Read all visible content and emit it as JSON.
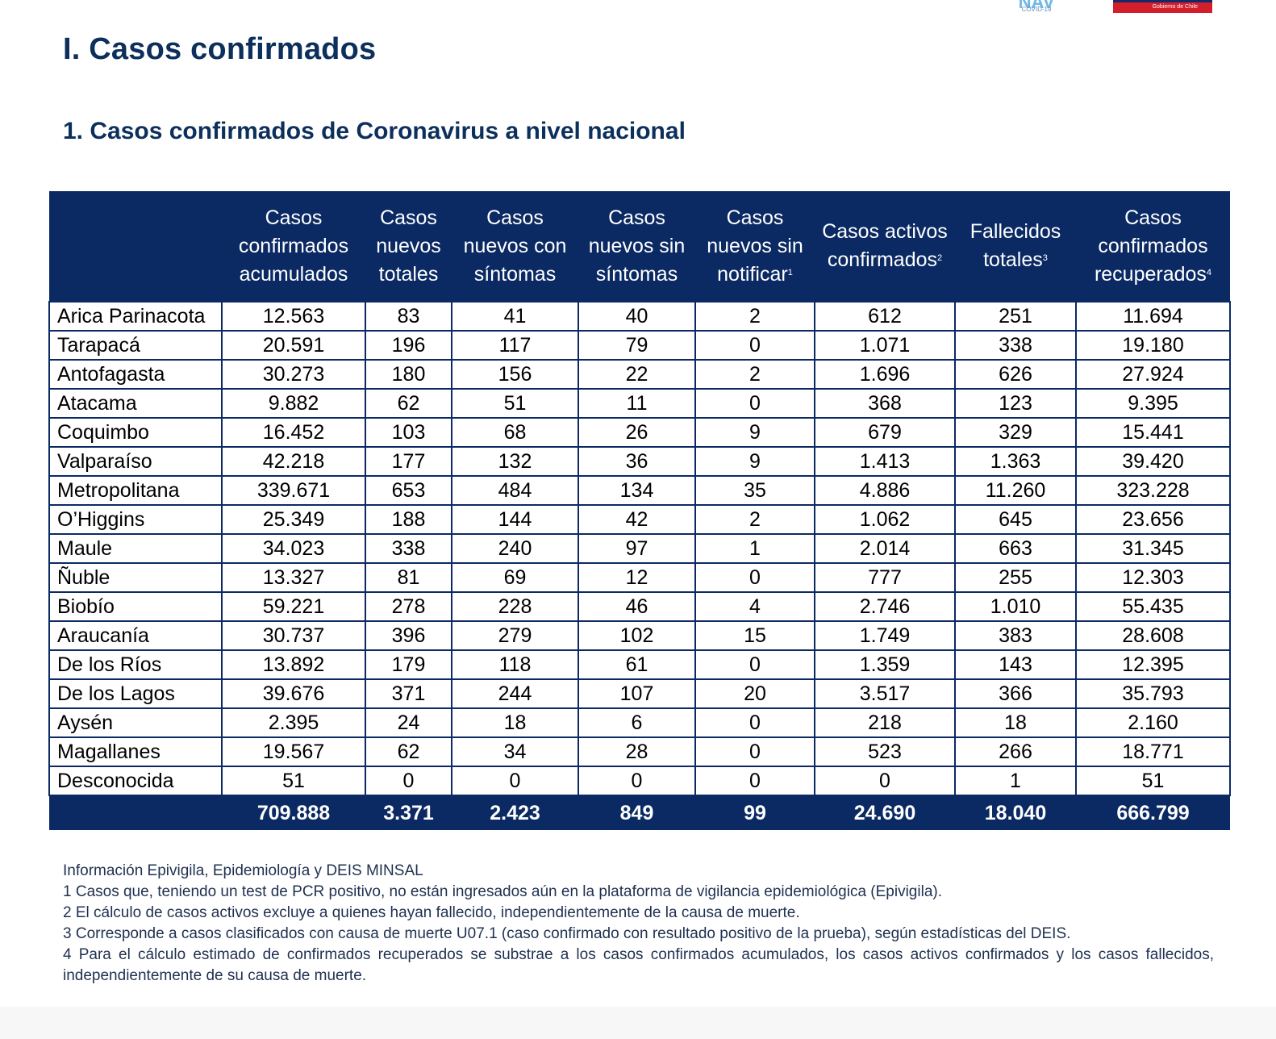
{
  "logos": {
    "left_label": "NAV",
    "left_sub": "COVID-19",
    "right_label": "Gobierno de Chile"
  },
  "heading": "I. Casos confirmados",
  "subheading": "1. Casos confirmados de Coronavirus a nivel nacional",
  "table": {
    "headers": [
      {
        "text": "",
        "sup": ""
      },
      {
        "text": "Casos confirmados acumulados",
        "sup": ""
      },
      {
        "text": "Casos nuevos totales",
        "sup": ""
      },
      {
        "text": "Casos nuevos con síntomas",
        "sup": ""
      },
      {
        "text": "Casos nuevos sin síntomas",
        "sup": ""
      },
      {
        "text": "Casos nuevos sin notificar",
        "sup": "1"
      },
      {
        "text": "Casos activos confirmados",
        "sup": "2"
      },
      {
        "text": "Fallecidos totales",
        "sup": "3"
      },
      {
        "text": "Casos confirmados recuperados",
        "sup": "4"
      }
    ],
    "rows": [
      [
        "Arica Parinacota",
        "12.563",
        "83",
        "41",
        "40",
        "2",
        "612",
        "251",
        "11.694"
      ],
      [
        "Tarapacá",
        "20.591",
        "196",
        "117",
        "79",
        "0",
        "1.071",
        "338",
        "19.180"
      ],
      [
        "Antofagasta",
        "30.273",
        "180",
        "156",
        "22",
        "2",
        "1.696",
        "626",
        "27.924"
      ],
      [
        "Atacama",
        "9.882",
        "62",
        "51",
        "11",
        "0",
        "368",
        "123",
        "9.395"
      ],
      [
        "Coquimbo",
        "16.452",
        "103",
        "68",
        "26",
        "9",
        "679",
        "329",
        "15.441"
      ],
      [
        "Valparaíso",
        "42.218",
        "177",
        "132",
        "36",
        "9",
        "1.413",
        "1.363",
        "39.420"
      ],
      [
        "Metropolitana",
        "339.671",
        "653",
        "484",
        "134",
        "35",
        "4.886",
        "11.260",
        "323.228"
      ],
      [
        "O’Higgins",
        "25.349",
        "188",
        "144",
        "42",
        "2",
        "1.062",
        "645",
        "23.656"
      ],
      [
        "Maule",
        "34.023",
        "338",
        "240",
        "97",
        "1",
        "2.014",
        "663",
        "31.345"
      ],
      [
        "Ñuble",
        "13.327",
        "81",
        "69",
        "12",
        "0",
        "777",
        "255",
        "12.303"
      ],
      [
        "Biobío",
        "59.221",
        "278",
        "228",
        "46",
        "4",
        "2.746",
        "1.010",
        "55.435"
      ],
      [
        "Araucanía",
        "30.737",
        "396",
        "279",
        "102",
        "15",
        "1.749",
        "383",
        "28.608"
      ],
      [
        "De los Ríos",
        "13.892",
        "179",
        "118",
        "61",
        "0",
        "1.359",
        "143",
        "12.395"
      ],
      [
        "De los Lagos",
        "39.676",
        "371",
        "244",
        "107",
        "20",
        "3.517",
        "366",
        "35.793"
      ],
      [
        "Aysén",
        "2.395",
        "24",
        "18",
        "6",
        "0",
        "218",
        "18",
        "2.160"
      ],
      [
        "Magallanes",
        "19.567",
        "62",
        "34",
        "28",
        "0",
        "523",
        "266",
        "18.771"
      ],
      [
        "Desconocida",
        "51",
        "0",
        "0",
        "0",
        "0",
        "0",
        "1",
        "51"
      ]
    ],
    "totals": [
      "",
      "709.888",
      "3.371",
      "2.423",
      "849",
      "99",
      "24.690",
      "18.040",
      "666.799"
    ]
  },
  "notes": [
    "Información Epivigila, Epidemiología y DEIS MINSAL",
    "1 Casos que, teniendo un test de PCR positivo, no están ingresados aún en la plataforma de vigilancia epidemiológica (Epivigila).",
    "2 El cálculo de casos activos excluye a quienes hayan fallecido, independientemente de la causa de muerte.",
    "3 Corresponde a casos clasificados con causa de muerte U07.1 (caso confirmado con resultado positivo de la prueba), según estadísticas del DEIS.",
    "4 Para el cálculo estimado de confirmados recuperados se substrae a los casos confirmados acumulados, los casos activos confirmados y los casos fallecidos, independientemente de su causa de muerte."
  ],
  "colors": {
    "navy": "#0b2a63",
    "heading": "#0c2f5c",
    "gov_red": "#d21f2b"
  }
}
